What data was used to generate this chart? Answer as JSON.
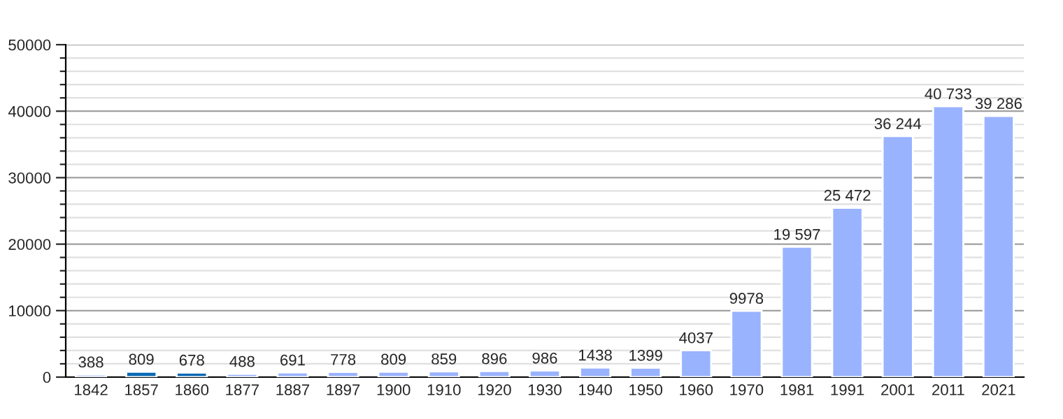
{
  "chart_data": {
    "type": "bar",
    "categories": [
      "1842",
      "1857",
      "1860",
      "1877",
      "1887",
      "1897",
      "1900",
      "1910",
      "1920",
      "1930",
      "1940",
      "1950",
      "1960",
      "1970",
      "1981",
      "1991",
      "2001",
      "2011",
      "2021"
    ],
    "values": [
      388,
      809,
      678,
      488,
      691,
      778,
      809,
      859,
      896,
      986,
      1438,
      1399,
      4037,
      9978,
      19597,
      25472,
      36244,
      40733,
      39286
    ],
    "colors": [
      "#99b3ff",
      "#0a6ab5",
      "#0a6ab5",
      "#99b3ff",
      "#99b3ff",
      "#99b3ff",
      "#99b3ff",
      "#99b3ff",
      "#99b3ff",
      "#99b3ff",
      "#99b3ff",
      "#99b3ff",
      "#99b3ff",
      "#99b3ff",
      "#99b3ff",
      "#99b3ff",
      "#99b3ff",
      "#99b3ff",
      "#99b3ff"
    ],
    "value_labels": [
      "388",
      "809",
      "678",
      "488",
      "691",
      "778",
      "809",
      "859",
      "896",
      "986",
      "1438",
      "1399",
      "4037",
      "9978",
      "19 597",
      "25 472",
      "36 244",
      "40 733",
      "39 286"
    ],
    "ylim": [
      0,
      50000
    ],
    "yticks": [
      0,
      {
        "value": 2000,
        "label": null
      },
      {
        "value": 4000,
        "label": null
      },
      {
        "value": 6000,
        "label": null
      },
      {
        "value": 8000,
        "label": null
      },
      10000,
      {
        "value": 12000,
        "label": null
      },
      {
        "value": 14000,
        "label": null
      },
      {
        "value": 16000,
        "label": null
      },
      {
        "value": 18000,
        "label": null
      },
      20000,
      {
        "value": 22000,
        "label": null
      },
      {
        "value": 24000,
        "label": null
      },
      {
        "value": 26000,
        "label": null
      },
      {
        "value": 28000,
        "label": null
      },
      30000,
      {
        "value": 32000,
        "label": null
      },
      {
        "value": 34000,
        "label": null
      },
      {
        "value": 36000,
        "label": null
      },
      {
        "value": 38000,
        "label": null
      },
      40000,
      {
        "value": 42000,
        "label": null
      },
      {
        "value": 44000,
        "label": null
      },
      {
        "value": 46000,
        "label": null
      },
      {
        "value": 48000,
        "label": null
      },
      50000
    ],
    "grid": "y"
  }
}
